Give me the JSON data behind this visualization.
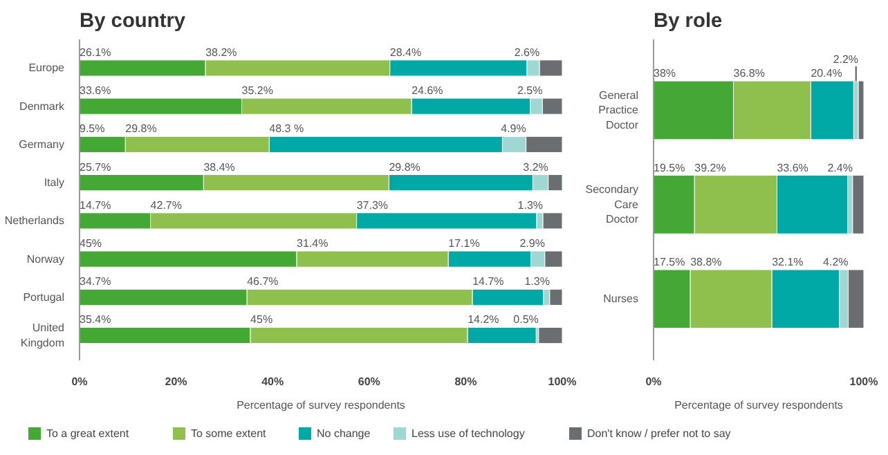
{
  "chart_data": [
    {
      "type": "bar",
      "orientation": "horizontal",
      "stacked": true,
      "title": "By country",
      "xlabel": "Percentage of survey respondents",
      "categories": [
        "Europe",
        "Denmark",
        "Germany",
        "Italy",
        "Netherlands",
        "Norway",
        "Portugal",
        "United Kingdom"
      ],
      "xlim": [
        0,
        100
      ],
      "xticks": [
        {
          "value": 0,
          "label": "0%"
        },
        {
          "value": 20,
          "label": "20%"
        },
        {
          "value": 40,
          "label": "40%"
        },
        {
          "value": 60,
          "label": "60%"
        },
        {
          "value": 80,
          "label": "80%"
        },
        {
          "value": 100,
          "label": "100%"
        }
      ],
      "grid": false,
      "legend": "bottom",
      "series": [
        {
          "name": "To a great extent",
          "color": "#43a934",
          "values": [
            26.1,
            33.6,
            9.5,
            25.7,
            14.7,
            45,
            34.7,
            35.4
          ],
          "value_labels": [
            "26.1%",
            "33.6%",
            "9.5%",
            "25.7%",
            "14.7%",
            "45%",
            "34.7%",
            "35.4%"
          ]
        },
        {
          "name": "To some extent",
          "color": "#8fc04d",
          "values": [
            38.2,
            35.2,
            29.8,
            38.4,
            42.7,
            31.4,
            46.7,
            45
          ],
          "value_labels": [
            "38.2%",
            "35.2%",
            "29.8%",
            "38.4%",
            "42.7%",
            "31.4%",
            "46.7%",
            "45%"
          ]
        },
        {
          "name": "No change",
          "color": "#00a9a5",
          "values": [
            28.4,
            24.6,
            48.3,
            29.8,
            37.3,
            17.1,
            14.7,
            14.2
          ],
          "value_labels": [
            "28.4%",
            "24.6%",
            "48.3 %",
            "29.8%",
            "37.3%",
            "17.1%",
            "14.7%",
            "14.2%"
          ]
        },
        {
          "name": "Less use of technology",
          "color": "#9fd7d3",
          "values": [
            2.6,
            2.5,
            4.9,
            3.2,
            1.3,
            2.9,
            1.3,
            0.5
          ],
          "value_labels": [
            "2.6%",
            "2.5%",
            "4.9%",
            "3.2%",
            "1.3%",
            "2.9%",
            "1.3%",
            "0.5%"
          ]
        },
        {
          "name": "Don't know / prefer not to say",
          "color": "#6b6e70",
          "values": [
            4.7,
            4.1,
            7.5,
            2.9,
            4.0,
            3.6,
            2.6,
            4.9
          ]
        }
      ]
    },
    {
      "type": "bar",
      "orientation": "horizontal",
      "stacked": true,
      "title": "By role",
      "xlabel": "Percentage of survey respondents",
      "categories": [
        "General Practice Doctor",
        "Secondary Care Doctor",
        "Nurses"
      ],
      "xlim": [
        0,
        100
      ],
      "xticks": [
        {
          "value": 0,
          "label": "0%"
        },
        {
          "value": 100,
          "label": "100%"
        }
      ],
      "grid": false,
      "series": [
        {
          "color": "#43a934",
          "values": [
            38,
            19.5,
            17.5
          ],
          "value_labels": [
            "38%",
            "19.5%",
            "17.5%"
          ]
        },
        {
          "color": "#8fc04d",
          "values": [
            36.8,
            39.2,
            38.8
          ],
          "value_labels": [
            "36.8%",
            "39.2%",
            "38.8%"
          ]
        },
        {
          "color": "#00a9a5",
          "values": [
            20.4,
            33.6,
            32.1
          ],
          "value_labels": [
            "20.4%",
            "33.6%",
            "32.1%"
          ]
        },
        {
          "color": "#9fd7d3",
          "values": [
            2.2,
            2.4,
            4.2
          ],
          "value_labels": [
            "2.2%",
            "2.4%",
            "4.2%"
          ]
        },
        {
          "color": "#6b6e70",
          "values": [
            2.6,
            5.3,
            7.4
          ]
        }
      ]
    }
  ]
}
